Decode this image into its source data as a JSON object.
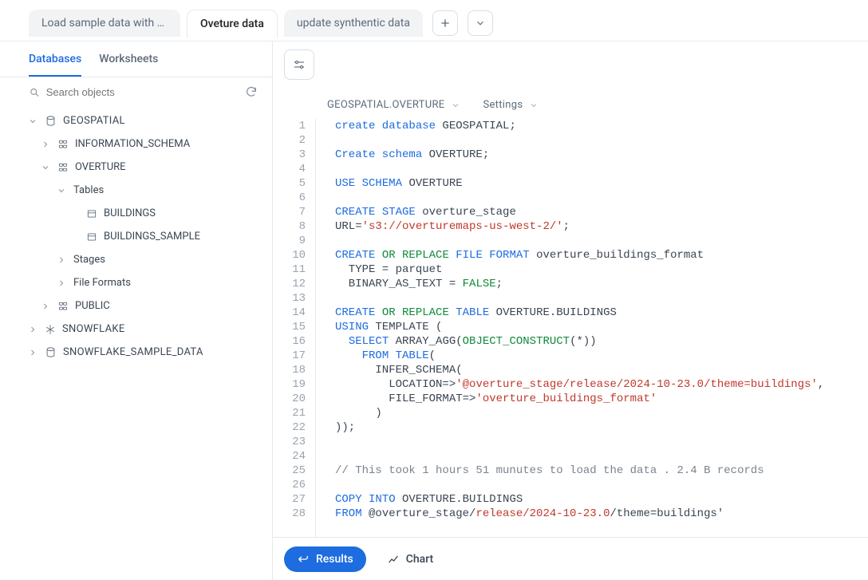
{
  "tabs": {
    "items": [
      {
        "label": "Load sample data with SQ…"
      },
      {
        "label": "Oveture data"
      },
      {
        "label": "update synthentic data"
      }
    ],
    "active_index": 1
  },
  "sidebar": {
    "tabs": {
      "databases": "Databases",
      "worksheets": "Worksheets"
    },
    "search_placeholder": "Search objects",
    "tree": {
      "db_geospatial": "GEOSPATIAL",
      "schema_info": "INFORMATION_SCHEMA",
      "schema_overture": "OVERTURE",
      "folder_tables": "Tables",
      "tbl_buildings": "BUILDINGS",
      "tbl_buildings_sample": "BUILDINGS_SAMPLE",
      "folder_stages": "Stages",
      "folder_fileformats": "File Formats",
      "schema_public": "PUBLIC",
      "db_snowflake": "SNOWFLAKE",
      "db_snowflake_sample": "SNOWFLAKE_SAMPLE_DATA"
    }
  },
  "context": {
    "path": "GEOSPATIAL.OVERTURE",
    "settings": "Settings"
  },
  "code": [
    {
      "n": 1,
      "seg": [
        [
          "kw",
          "create database"
        ],
        [
          "txt",
          " GEOSPATIAL;"
        ]
      ]
    },
    {
      "n": 2,
      "seg": []
    },
    {
      "n": 3,
      "seg": [
        [
          "kw",
          "Create schema"
        ],
        [
          "txt",
          " OVERTURE;"
        ]
      ]
    },
    {
      "n": 4,
      "seg": []
    },
    {
      "n": 5,
      "seg": [
        [
          "kw",
          "USE"
        ],
        [
          "txt",
          " "
        ],
        [
          "kw",
          "SCHEMA"
        ],
        [
          "txt",
          " OVERTURE"
        ]
      ]
    },
    {
      "n": 6,
      "seg": []
    },
    {
      "n": 7,
      "seg": [
        [
          "kw",
          "CREATE"
        ],
        [
          "txt",
          " "
        ],
        [
          "kw",
          "STAGE"
        ],
        [
          "txt",
          " overture_stage"
        ]
      ]
    },
    {
      "n": 8,
      "seg": [
        [
          "txt",
          "URL="
        ],
        [
          "str",
          "'s3://overturemaps-us-west-2/'"
        ],
        [
          "txt",
          ";"
        ]
      ]
    },
    {
      "n": 9,
      "seg": []
    },
    {
      "n": 10,
      "seg": [
        [
          "kw",
          "CREATE"
        ],
        [
          "txt",
          " "
        ],
        [
          "kw2",
          "OR REPLACE"
        ],
        [
          "txt",
          " "
        ],
        [
          "kw",
          "FILE FORMAT"
        ],
        [
          "txt",
          " overture_buildings_format"
        ]
      ]
    },
    {
      "n": 11,
      "seg": [
        [
          "txt",
          "  TYPE = parquet"
        ]
      ]
    },
    {
      "n": 12,
      "seg": [
        [
          "txt",
          "  BINARY_AS_TEXT = "
        ],
        [
          "kw2",
          "FALSE"
        ],
        [
          "txt",
          ";"
        ]
      ]
    },
    {
      "n": 13,
      "seg": []
    },
    {
      "n": 14,
      "seg": [
        [
          "kw",
          "CREATE"
        ],
        [
          "txt",
          " "
        ],
        [
          "kw2",
          "OR REPLACE"
        ],
        [
          "txt",
          " "
        ],
        [
          "kw",
          "TABLE"
        ],
        [
          "txt",
          " OVERTURE.BUILDINGS"
        ]
      ]
    },
    {
      "n": 15,
      "seg": [
        [
          "kw",
          "USING"
        ],
        [
          "txt",
          " TEMPLATE ("
        ]
      ]
    },
    {
      "n": 16,
      "seg": [
        [
          "txt",
          "  "
        ],
        [
          "kw",
          "SELECT"
        ],
        [
          "txt",
          " ARRAY_AGG("
        ],
        [
          "kw2",
          "OBJECT_CONSTRUCT"
        ],
        [
          "txt",
          "(*))"
        ]
      ]
    },
    {
      "n": 17,
      "seg": [
        [
          "txt",
          "    "
        ],
        [
          "kw",
          "FROM"
        ],
        [
          "txt",
          " "
        ],
        [
          "kw",
          "TABLE"
        ],
        [
          "txt",
          "("
        ]
      ]
    },
    {
      "n": 18,
      "seg": [
        [
          "txt",
          "      INFER_SCHEMA("
        ]
      ]
    },
    {
      "n": 19,
      "seg": [
        [
          "txt",
          "        LOCATION=>"
        ],
        [
          "str",
          "'@overture_stage/release/2024-10-23.0/theme=buildings'"
        ],
        [
          "txt",
          ","
        ]
      ]
    },
    {
      "n": 20,
      "seg": [
        [
          "txt",
          "        FILE_FORMAT=>"
        ],
        [
          "str",
          "'overture_buildings_format'"
        ]
      ]
    },
    {
      "n": 21,
      "seg": [
        [
          "txt",
          "      )"
        ]
      ]
    },
    {
      "n": 22,
      "seg": [
        [
          "txt",
          "));"
        ]
      ]
    },
    {
      "n": 23,
      "seg": []
    },
    {
      "n": 24,
      "seg": []
    },
    {
      "n": 25,
      "seg": [
        [
          "cm",
          "// This took 1 hours 51 munutes to load the data . 2.4 B records"
        ]
      ]
    },
    {
      "n": 26,
      "seg": []
    },
    {
      "n": 27,
      "seg": [
        [
          "kw",
          "COPY INTO"
        ],
        [
          "txt",
          " OVERTURE.BUILDINGS"
        ]
      ]
    },
    {
      "n": 28,
      "seg": [
        [
          "kw",
          "FROM"
        ],
        [
          "txt",
          " @overture_stage/"
        ],
        [
          "str",
          "release/2024-10-23.0"
        ],
        [
          "txt",
          "/theme=buildings'"
        ]
      ]
    }
  ],
  "bottom": {
    "results": "Results",
    "chart": "Chart"
  }
}
